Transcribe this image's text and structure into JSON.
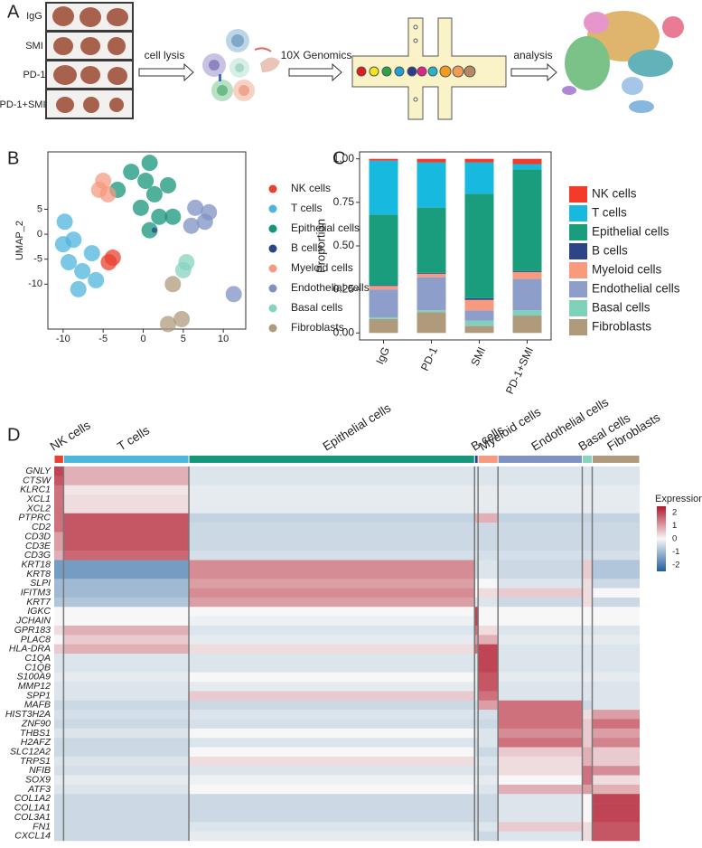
{
  "labels": [
    "A",
    "B",
    "C",
    "D"
  ],
  "panel_a": {
    "rows": [
      "IgG",
      "SMI",
      "PD-1",
      "PD-1+SMI"
    ],
    "steps": [
      "cell lysis",
      "10X Genomics",
      "analysis"
    ]
  },
  "chart_data": [
    {
      "type": "scatter",
      "y_label": "UMAP_2",
      "xlim": [
        -11.9,
        12.8
      ],
      "ylim": [
        -19,
        16.5
      ],
      "xticks": [
        -10,
        -5,
        0,
        5,
        10
      ],
      "yticks": [
        5,
        0,
        -5,
        -10
      ],
      "series": [
        {
          "name": "NK cells",
          "color": "#e8412f",
          "x": [
            -4.3,
            -3.8
          ],
          "y": [
            -5.6,
            -4.7
          ]
        },
        {
          "name": "T cells",
          "color": "#4db6dc",
          "x": [
            -9.8,
            -8.7,
            -9.3,
            -7.6,
            -5.9,
            -6.4,
            -10,
            -8.1
          ],
          "y": [
            2.5,
            -1.1,
            -5.6,
            -7.4,
            -9.2,
            -3.8,
            -2,
            -11
          ]
        },
        {
          "name": "Epithelial cells",
          "color": "#16967a",
          "x": [
            -1.5,
            0.3,
            1.4,
            2,
            -0.3,
            0.8,
            3.1,
            -3.2,
            3.7,
            0.8
          ],
          "y": [
            12.5,
            10.7,
            8,
            3.5,
            5.3,
            0.8,
            9.8,
            8.9,
            3.5,
            14.3
          ]
        },
        {
          "name": "B cells",
          "color": "#2b4585",
          "x": [
            1.4
          ],
          "y": [
            0.8
          ]
        },
        {
          "name": "Myeloid cells",
          "color": "#f49b80",
          "x": [
            -5,
            -4.4,
            -5.5
          ],
          "y": [
            10.7,
            8,
            8.9
          ]
        },
        {
          "name": "Endothelial cells",
          "color": "#8092c4",
          "x": [
            6.5,
            7.7,
            6,
            8.2,
            11.3
          ],
          "y": [
            5.3,
            2.5,
            1.7,
            4.4,
            -12
          ]
        },
        {
          "name": "Basal cells",
          "color": "#86d3bf",
          "x": [
            5.4,
            5
          ],
          "y": [
            -5.6,
            -7.2
          ]
        },
        {
          "name": "Fibroblasts",
          "color": "#b09a7c",
          "x": [
            3.1,
            4.8,
            3.7
          ],
          "y": [
            -18,
            -17,
            -10
          ]
        }
      ]
    },
    {
      "type": "stacked_bar",
      "y_label": "Proportion",
      "categories": [
        "IgG",
        "PD-1",
        "SMI",
        "PD-1+SMI"
      ],
      "ylim": [
        -0.04,
        1.04
      ],
      "yticks": [
        {
          "value": 0,
          "label": "0.00"
        },
        {
          "value": 0.25,
          "label": "0.25"
        },
        {
          "value": 0.5,
          "label": "0.50"
        },
        {
          "value": 0.75,
          "label": "0.75"
        },
        {
          "value": 1,
          "label": "1.00"
        }
      ],
      "series": [
        {
          "name": "NK cells",
          "color": "#f23b2b",
          "values": [
            0.01,
            0.02,
            0.02,
            0.03
          ]
        },
        {
          "name": "T cells",
          "color": "#17b9de",
          "values": [
            0.31,
            0.26,
            0.18,
            0.03
          ]
        },
        {
          "name": "Epithelial cells",
          "color": "#1a9d7d",
          "values": [
            0.405,
            0.375,
            0.6,
            0.585
          ]
        },
        {
          "name": "B cells",
          "color": "#2b4585",
          "values": [
            0.005,
            0.005,
            0.01,
            0.005
          ]
        },
        {
          "name": "Myeloid cells",
          "color": "#f79a7e",
          "values": [
            0.02,
            0.02,
            0.06,
            0.04
          ]
        },
        {
          "name": "Endothelial cells",
          "color": "#8c9ec9",
          "values": [
            0.16,
            0.19,
            0.06,
            0.18
          ]
        },
        {
          "name": "Basal cells",
          "color": "#80d1bc",
          "values": [
            0.01,
            0.01,
            0.03,
            0.03
          ]
        },
        {
          "name": "Fibroblasts",
          "color": "#b09a7c",
          "values": [
            0.08,
            0.12,
            0.04,
            0.1
          ]
        }
      ]
    },
    {
      "type": "heatmap",
      "colorbar_label": "Expression",
      "columns": [
        "NK cells",
        "T cells",
        "Epithelial cells",
        "B cells",
        "Myeloid cells",
        "Endothelial cells",
        "Basal cells",
        "Fibroblasts"
      ],
      "column_sizes": [
        1.6,
        21.4,
        48.8,
        0.6,
        3.4,
        14.4,
        1.7,
        8.1
      ],
      "column_colors": [
        "#e8412f",
        "#4db6dc",
        "#16967a",
        "#2b4585",
        "#f49b80",
        "#8092c4",
        "#86d3bf",
        "#b09a7c"
      ],
      "rows": [
        "GNLY",
        "CTSW",
        "KLRC1",
        "XCL1",
        "XCL2",
        "PTPRC",
        "CD2",
        "CD3D",
        "CD3E",
        "CD3G",
        "KRT18",
        "KRT8",
        "SLPI",
        "IFITM3",
        "KRT7",
        "IGKC",
        "JCHAIN",
        "GPR183",
        "PLAC8",
        "HLA-DRA",
        "C1QA",
        "C1QB",
        "S100A9",
        "MMP12",
        "SPP1",
        "MAFB",
        "HIST3H2A",
        "ZNF90",
        "THBS1",
        "H2AFZ",
        "SLC12A2",
        "TRPS1",
        "NFIB",
        "SOX9",
        "ATF3",
        "COL1A2",
        "COL1A1",
        "COL3A1",
        "FN1",
        "CXCL14"
      ],
      "clim": [
        -2.5,
        2.5
      ],
      "cticks": [
        2,
        1,
        0,
        -1,
        -2
      ],
      "values": [
        [
          2,
          0.8,
          -0.3,
          -0.3,
          -0.3,
          -0.3,
          -0.3,
          -0.3
        ],
        [
          1.8,
          0.8,
          -0.3,
          -0.3,
          -0.3,
          -0.3,
          -0.3,
          -0.3
        ],
        [
          1.5,
          0.2,
          -0.2,
          -0.2,
          -0.2,
          -0.2,
          -0.2,
          -0.2
        ],
        [
          1.5,
          0.3,
          -0.2,
          -0.2,
          -0.2,
          -0.2,
          -0.2,
          -0.2
        ],
        [
          1.5,
          0.3,
          -0.2,
          -0.2,
          -0.2,
          -0.2,
          -0.2,
          -0.2
        ],
        [
          1.5,
          1.8,
          -0.6,
          0.8,
          0.8,
          -0.6,
          -0.6,
          -0.6
        ],
        [
          1.5,
          1.8,
          -0.5,
          -0.5,
          -0.5,
          -0.5,
          -0.5,
          -0.5
        ],
        [
          1,
          1.8,
          -0.5,
          -0.5,
          -0.5,
          -0.5,
          -0.5,
          -0.5
        ],
        [
          1,
          1.8,
          -0.5,
          -0.5,
          -0.5,
          -0.5,
          -0.5,
          -0.5
        ],
        [
          0.8,
          1.6,
          -0.4,
          -0.4,
          -0.4,
          -0.4,
          -0.4,
          -0.4
        ],
        [
          -1.5,
          -1.5,
          1.2,
          -0.5,
          -0.3,
          -0.5,
          0.5,
          -0.8
        ],
        [
          -1.5,
          -1.5,
          1.2,
          -0.5,
          -0.3,
          -0.5,
          0.5,
          -0.8
        ],
        [
          -1,
          -1,
          1,
          0,
          0,
          -0.3,
          0.3,
          -0.5
        ],
        [
          -1,
          -1,
          1.2,
          0,
          0.3,
          0.5,
          0.3,
          0
        ],
        [
          -0.8,
          -0.8,
          1,
          -0.3,
          -0.3,
          -0.5,
          0.3,
          -0.5
        ],
        [
          0,
          0,
          0,
          2,
          0,
          0,
          0,
          0
        ],
        [
          0,
          0,
          -0.1,
          2,
          0,
          0,
          0,
          0
        ],
        [
          0.3,
          0.8,
          -0.3,
          1.5,
          0.3,
          -0.3,
          -0.3,
          -0.3
        ],
        [
          0,
          0.5,
          -0.2,
          1,
          0.8,
          -0.2,
          -0.2,
          -0.2
        ],
        [
          0.5,
          0.8,
          0.3,
          1.5,
          2,
          -0.3,
          -0.3,
          -0.3
        ],
        [
          -0.3,
          -0.3,
          -0.3,
          -0.3,
          2,
          -0.3,
          -0.3,
          -0.3
        ],
        [
          -0.3,
          -0.3,
          -0.3,
          -0.3,
          2,
          -0.3,
          -0.3,
          -0.3
        ],
        [
          -0.2,
          -0.2,
          0,
          -0.2,
          1.8,
          -0.2,
          -0.2,
          -0.2
        ],
        [
          -0.3,
          -0.3,
          -0.2,
          -0.3,
          1.8,
          -0.3,
          -0.3,
          -0.3
        ],
        [
          -0.3,
          -0.3,
          0.5,
          -0.3,
          1.5,
          -0.3,
          -0.3,
          -0.3
        ],
        [
          -0.5,
          -0.5,
          -0.5,
          -0.5,
          1,
          1.5,
          -0.5,
          -0.3
        ],
        [
          -0.4,
          -0.4,
          -0.3,
          -0.4,
          -0.4,
          1.5,
          0.3,
          1
        ],
        [
          -0.5,
          -0.5,
          -0.4,
          -0.5,
          -0.5,
          1.5,
          0.5,
          1.5
        ],
        [
          -0.3,
          -0.3,
          0,
          -0.3,
          -0.3,
          1.2,
          0.5,
          1
        ],
        [
          -0.5,
          -0.5,
          -0.3,
          -0.5,
          -0.3,
          1.5,
          0.5,
          1.3
        ],
        [
          -0.5,
          -0.5,
          0,
          -0.5,
          -0.5,
          0.5,
          0.8,
          0.5
        ],
        [
          -0.3,
          -0.3,
          0.3,
          -0.3,
          -0.3,
          0.3,
          0.8,
          0.5
        ],
        [
          -0.4,
          -0.4,
          -0.3,
          -0.4,
          -0.4,
          0.3,
          1.5,
          1.2
        ],
        [
          -0.2,
          -0.2,
          -0.1,
          -0.2,
          -0.2,
          0,
          1.5,
          0.3
        ],
        [
          -0.3,
          -0.3,
          0,
          -0.3,
          -0.3,
          0.8,
          1,
          0.8
        ],
        [
          -0.5,
          -0.5,
          -0.5,
          -0.5,
          -0.5,
          -0.3,
          0,
          2
        ],
        [
          -0.5,
          -0.5,
          -0.5,
          -0.5,
          -0.5,
          -0.3,
          0,
          2
        ],
        [
          -0.5,
          -0.5,
          -0.5,
          -0.5,
          -0.5,
          -0.3,
          0,
          2
        ],
        [
          -0.5,
          -0.5,
          -0.3,
          -0.5,
          -0.3,
          0.5,
          0.3,
          1.8
        ],
        [
          -0.5,
          -0.5,
          -0.2,
          -0.5,
          -0.5,
          -0.3,
          0.3,
          1.8
        ]
      ]
    }
  ]
}
